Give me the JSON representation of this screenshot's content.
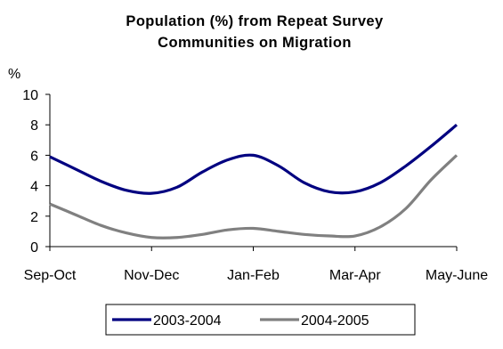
{
  "chart_data": {
    "type": "line",
    "title_lines": [
      "Population (%) from Repeat Survey",
      "Communities on Migration"
    ],
    "y_unit_label": "%",
    "xlabel": "",
    "ylabel": "",
    "categories": [
      "Sep-Oct",
      "Nov-Dec",
      "Jan-Feb",
      "Mar-Apr",
      "May-June"
    ],
    "x_positions": [
      0,
      1,
      2,
      3,
      4
    ],
    "ylim": [
      0,
      10
    ],
    "y_ticks": [
      "0",
      "2",
      "4",
      "6",
      "8",
      "10"
    ],
    "grid": false,
    "legend_position": "bottom",
    "series": [
      {
        "name": "2003-2004",
        "color": "#000080",
        "x": [
          0,
          0.25,
          0.5,
          0.75,
          1,
          1.25,
          1.5,
          1.75,
          2,
          2.25,
          2.5,
          2.75,
          3,
          3.25,
          3.5,
          3.75,
          4
        ],
        "values": [
          5.9,
          5.1,
          4.3,
          3.7,
          3.5,
          3.9,
          4.9,
          5.7,
          6.0,
          5.3,
          4.2,
          3.6,
          3.6,
          4.2,
          5.3,
          6.6,
          8.0
        ]
      },
      {
        "name": "2004-2005",
        "color": "#808080",
        "x": [
          0,
          0.25,
          0.5,
          0.75,
          1,
          1.25,
          1.5,
          1.75,
          2,
          2.25,
          2.5,
          2.75,
          3,
          3.25,
          3.5,
          3.75,
          4
        ],
        "values": [
          2.8,
          2.1,
          1.4,
          0.9,
          0.6,
          0.6,
          0.8,
          1.1,
          1.2,
          1.0,
          0.8,
          0.7,
          0.7,
          1.3,
          2.5,
          4.4,
          6.0
        ]
      }
    ]
  }
}
